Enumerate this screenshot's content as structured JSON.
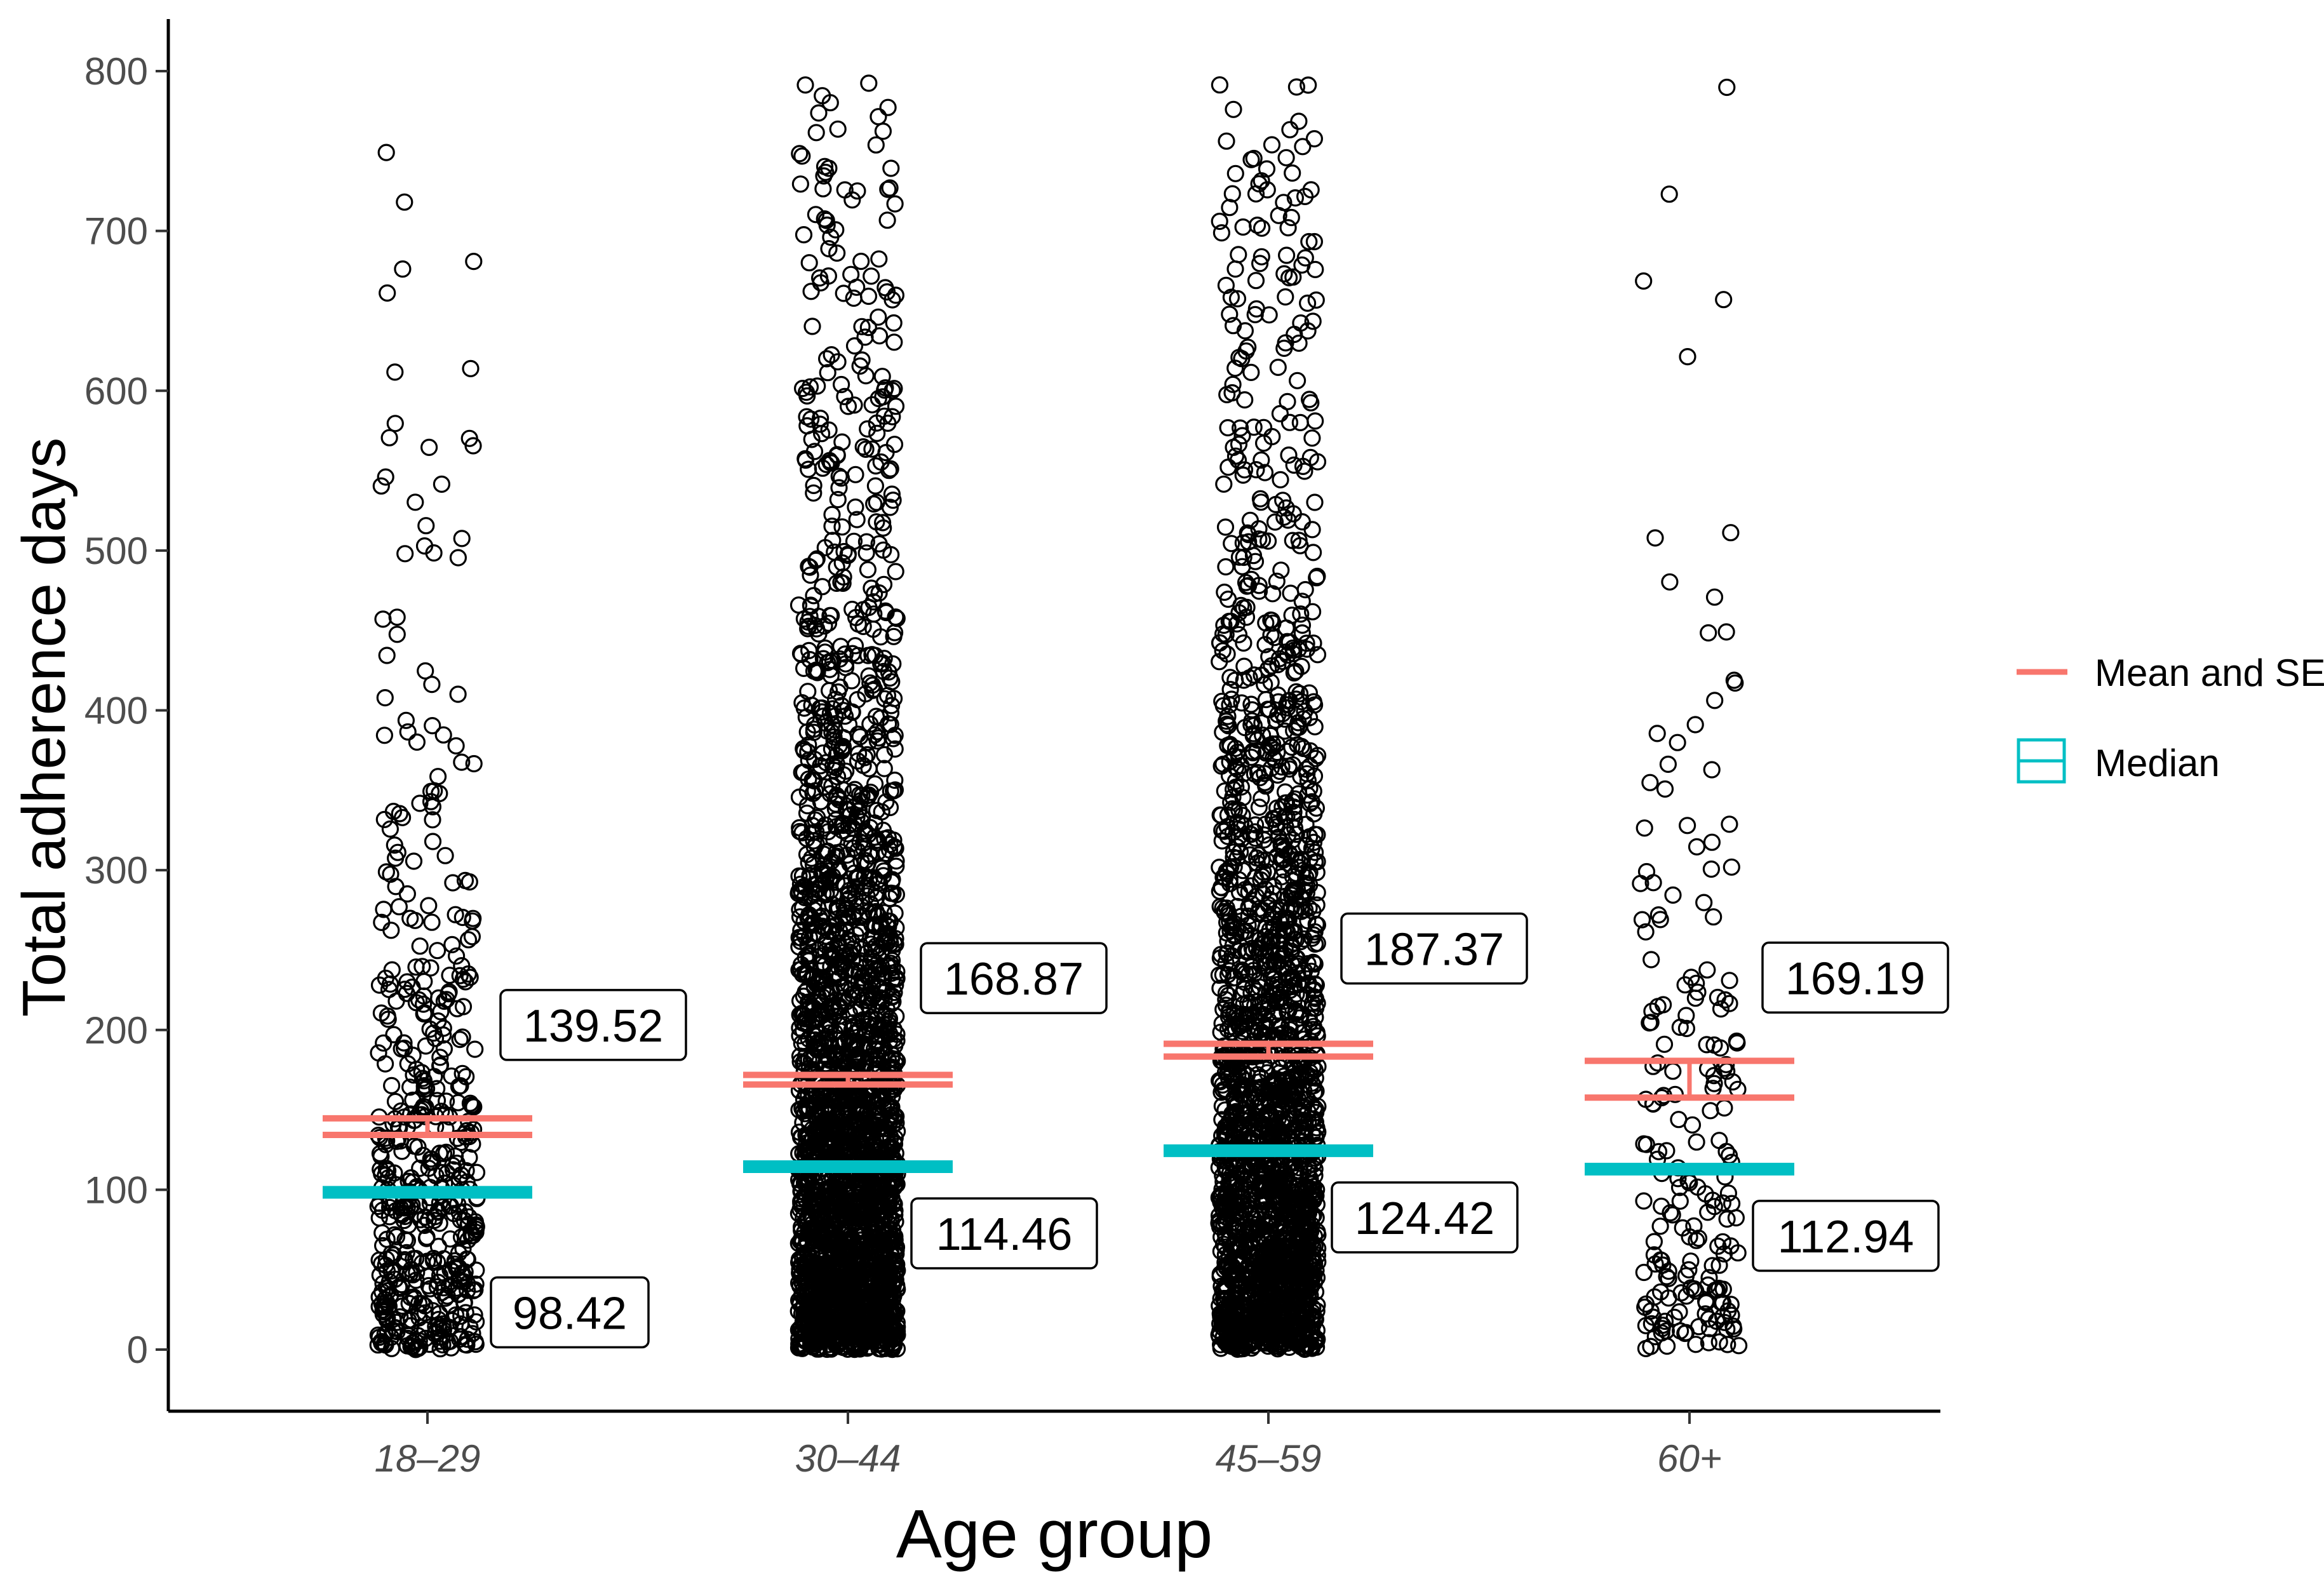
{
  "chart_data": {
    "type": "scatter",
    "title": "",
    "xlabel": "Age group",
    "ylabel": "Total adherence days",
    "ylim": [
      0,
      800
    ],
    "yticks": [
      0,
      100,
      200,
      300,
      400,
      500,
      600,
      700,
      800
    ],
    "categories": [
      "18–29",
      "30–44",
      "45–59",
      "60+"
    ],
    "groups": [
      {
        "category": "18–29",
        "mean": 139.52,
        "se": 5.2,
        "median": 98.42,
        "mean_label": "139.52",
        "median_label": "98.42",
        "n_points": 520
      },
      {
        "category": "30–44",
        "mean": 168.87,
        "se": 3.0,
        "median": 114.46,
        "mean_label": "168.87",
        "median_label": "114.46",
        "n_points": 2600
      },
      {
        "category": "45–59",
        "mean": 187.37,
        "se": 4.0,
        "median": 124.42,
        "mean_label": "187.37",
        "median_label": "124.42",
        "n_points": 2200
      },
      {
        "category": "60+",
        "mean": 169.19,
        "se": 11.5,
        "median": 112.94,
        "mean_label": "169.19",
        "median_label": "112.94",
        "n_points": 200
      }
    ],
    "legend": {
      "position": "right",
      "items": [
        {
          "label": "Mean and SE",
          "color": "#F8766D"
        },
        {
          "label": "Median",
          "color": "#00BFC4"
        }
      ]
    },
    "grid": false,
    "colors": {
      "mean": "#F8766D",
      "median": "#00BFC4",
      "points": "#000000"
    }
  }
}
